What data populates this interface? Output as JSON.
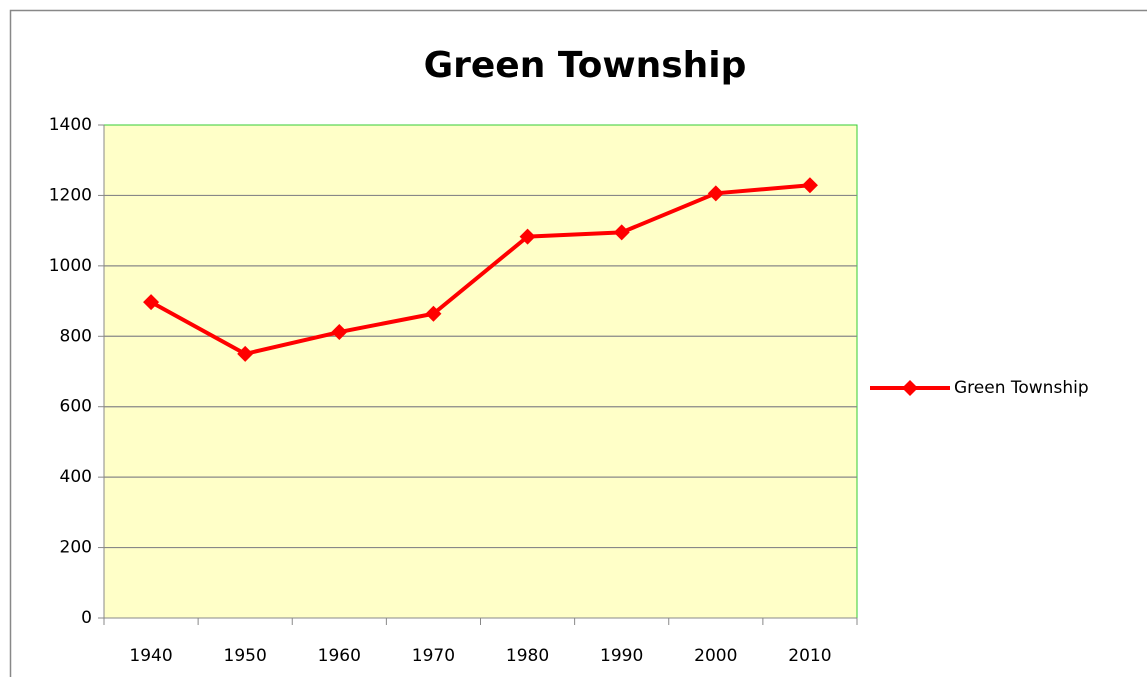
{
  "chart_data": {
    "type": "line",
    "title": "Green Township",
    "categories": [
      "1940",
      "1950",
      "1960",
      "1970",
      "1980",
      "1990",
      "2000",
      "2010"
    ],
    "series": [
      {
        "name": "Green Township",
        "color": "#ff0000",
        "values": [
          897,
          750,
          812,
          864,
          1083,
          1095,
          1206,
          1229
        ]
      }
    ],
    "ylim": [
      0,
      1400
    ],
    "yticks": [
      0,
      200,
      400,
      600,
      800,
      1000,
      1200,
      1400
    ],
    "grid": true,
    "legend": "right",
    "plot_background": "#ffffc8",
    "plot_border": "#33cc33"
  }
}
